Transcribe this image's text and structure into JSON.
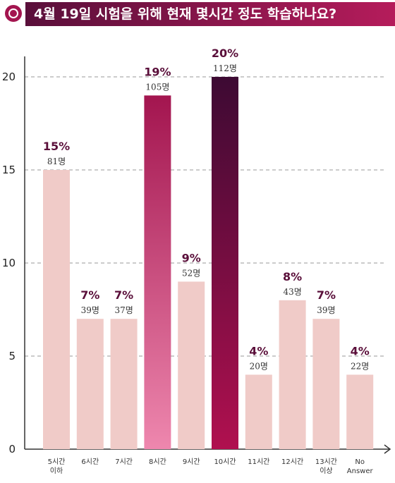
{
  "header": {
    "title": "4월 19일 시험을 위해 현재 몇시간 정도 학습하나요?"
  },
  "colors": {
    "default_bar": "#f0cbc8",
    "highlight_8h_top": "#a3154f",
    "highlight_8h_bottom": "#ee87ae",
    "highlight_10h_top": "#3d0a33",
    "highlight_10h_bottom": "#b0104f",
    "header_bar": "#8c1a4f"
  },
  "chart_data": {
    "type": "bar",
    "title": "4월 19일 시험을 위해 현재 몇시간 정도 학습하나요?",
    "xlabel": "",
    "ylabel": "",
    "ylim": [
      0,
      20
    ],
    "yticks": [
      0,
      5,
      10,
      15,
      20
    ],
    "grid": true,
    "categories": [
      [
        "5시간",
        "이하"
      ],
      [
        "6시간"
      ],
      [
        "7시간"
      ],
      [
        "8시간"
      ],
      [
        "9시간"
      ],
      [
        "10시간"
      ],
      [
        "11시간"
      ],
      [
        "12시간"
      ],
      [
        "13시간",
        "이상"
      ],
      [
        "No",
        "Answer"
      ]
    ],
    "values": [
      15,
      7,
      7,
      19,
      9,
      20,
      4,
      8,
      7,
      4
    ],
    "percent_labels": [
      "15%",
      "7%",
      "7%",
      "19%",
      "9%",
      "20%",
      "4%",
      "8%",
      "7%",
      "4%"
    ],
    "count_labels": [
      "81명",
      "39명",
      "37명",
      "105명",
      "52명",
      "112명",
      "20명",
      "43명",
      "39명",
      "22명"
    ],
    "highlight": [
      "none",
      "none",
      "none",
      "pink",
      "none",
      "dark",
      "none",
      "none",
      "none",
      "none"
    ]
  }
}
